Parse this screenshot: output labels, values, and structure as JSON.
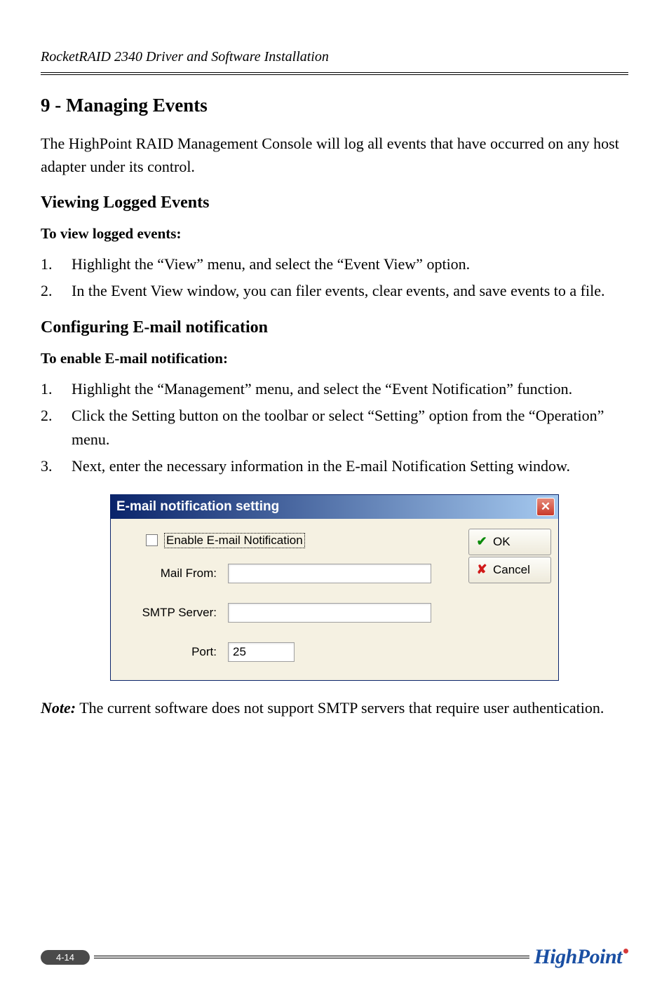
{
  "header": {
    "text": "RocketRAID 2340 Driver and Software Installation",
    "text_color": "#000000"
  },
  "content": {
    "section_title": "9 - Managing Events",
    "intro": "The HighPoint RAID Management Console will log all events that have occurred on any host adapter under its control.",
    "subsection1": {
      "title": "Viewing Logged Events",
      "subtitle": "To view logged events:",
      "items": [
        {
          "num": "1.",
          "text": "Highlight the “View” menu, and select the “Event View” option."
        },
        {
          "num": "2.",
          "text": "In the Event View window, you can filer events, clear events, and save events to a file."
        }
      ]
    },
    "subsection2": {
      "title": "Configuring E-mail notification",
      "subtitle": "To enable E-mail notification:",
      "items": [
        {
          "num": "1.",
          "text": "Highlight the “Management” menu, and select the “Event Notification” function."
        },
        {
          "num": "2.",
          "text": "Click the Setting button on the toolbar or select “Setting” option from the “Operation” menu."
        },
        {
          "num": "3.",
          "text": "Next, enter the necessary information in the E-mail Notification Setting window."
        }
      ]
    },
    "note": {
      "label": "Note:",
      "text": " The current software does not support SMTP servers that require user authentication."
    }
  },
  "dialog": {
    "title": "E-mail notification setting",
    "titlebar_gradient": {
      "from": "#0a246a",
      "to": "#a6caf0"
    },
    "close_bg": {
      "from": "#e68a7a",
      "to": "#c83a2a"
    },
    "body_bg": "#f5f1e2",
    "enable_label": "Enable E-mail Notification",
    "fields": {
      "mail_from": {
        "label": "Mail From:",
        "value": ""
      },
      "smtp_server": {
        "label": "SMTP Server:",
        "value": ""
      },
      "port": {
        "label": "Port:",
        "value": "25"
      }
    },
    "buttons": {
      "ok": {
        "label": "OK",
        "icon_color": "#0a8a0a"
      },
      "cancel": {
        "label": "Cancel",
        "icon_color": "#d11919"
      }
    }
  },
  "footer": {
    "page": "4-14",
    "logo_text": "HighPoint",
    "logo_color": "#1a4fa3",
    "logo_dot_color": "#d63a3a"
  }
}
